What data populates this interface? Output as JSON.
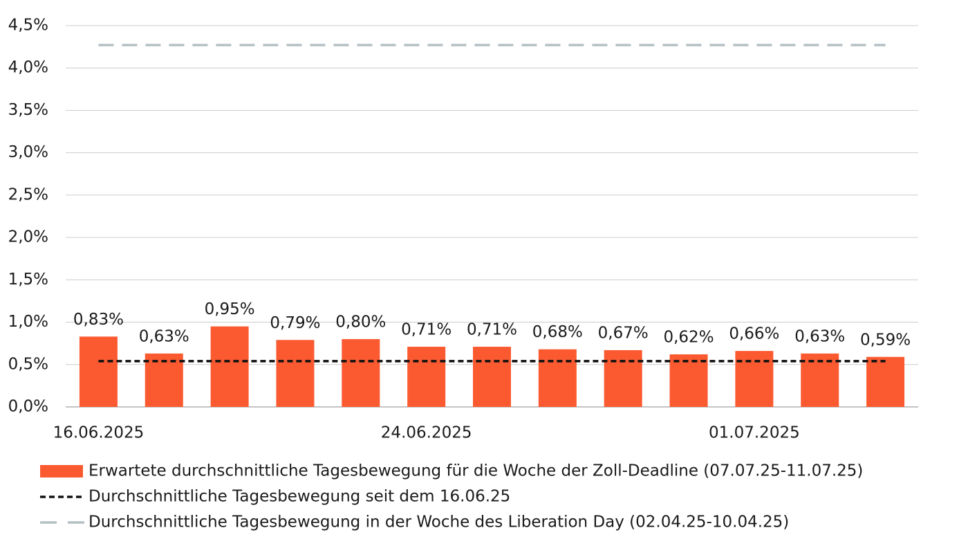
{
  "chart_data": {
    "type": "bar",
    "categories": [
      "16.06.2025",
      null,
      null,
      null,
      null,
      "24.06.2025",
      null,
      null,
      null,
      null,
      "01.07.2025",
      null,
      null
    ],
    "series": [
      {
        "name": "Erwartete durchschnittliche Tagesbewegung für die Woche der Zoll-Deadline (07.07.25-11.07.25)",
        "color": "#fb5a30",
        "values": [
          0.83,
          0.63,
          0.95,
          0.79,
          0.8,
          0.71,
          0.71,
          0.68,
          0.67,
          0.62,
          0.66,
          0.63,
          0.59
        ],
        "value_labels": [
          "0,83%",
          "0,63%",
          "0,95%",
          "0,79%",
          "0,80%",
          "0,71%",
          "0,71%",
          "0,68%",
          "0,67%",
          "0,62%",
          "0,66%",
          "0,63%",
          "0,59%"
        ]
      }
    ],
    "reference_lines": [
      {
        "name": "Durchschnittliche Tagesbewegung seit dem 16.06.25",
        "color": "#111111",
        "value": 0.54,
        "dash": "8 5"
      },
      {
        "name": "Durchschnittliche Tagesbewegung in der Woche des Liberation Day (02.04.25-10.04.25)",
        "color": "#b4c0c4",
        "value": 4.27,
        "dash": "22 12"
      }
    ],
    "ylim": [
      0,
      4.5
    ],
    "yticks": [
      {
        "value": 0,
        "label": "0,0%"
      },
      {
        "value": 0.5,
        "label": "0,5%"
      },
      {
        "value": 1,
        "label": "1,0%"
      },
      {
        "value": 1.5,
        "label": "1,5%"
      },
      {
        "value": 2,
        "label": "2,0%"
      },
      {
        "value": 2.5,
        "label": "2,5%"
      },
      {
        "value": 3,
        "label": "3,0%"
      },
      {
        "value": 3.5,
        "label": "3,5%"
      },
      {
        "value": 4,
        "label": "4,0%"
      },
      {
        "value": 4.5,
        "label": "4,5%"
      }
    ],
    "grid": true
  }
}
